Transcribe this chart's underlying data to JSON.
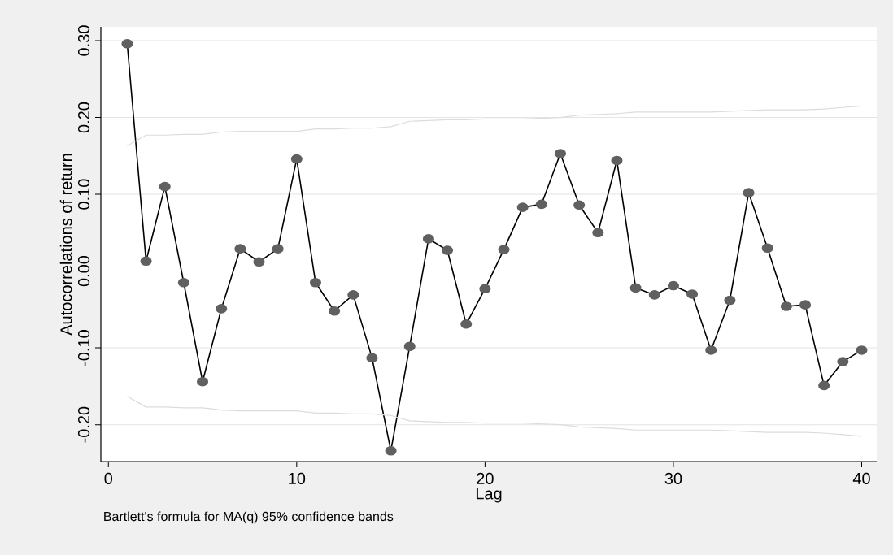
{
  "chart_data": {
    "type": "line",
    "xlabel": "Lag",
    "ylabel": "Autocorrelations of return",
    "annotations": [
      "Bartlett's formula for MA(q) 95% confidence bands"
    ],
    "x": [
      1,
      2,
      3,
      4,
      5,
      6,
      7,
      8,
      9,
      10,
      11,
      12,
      13,
      14,
      15,
      16,
      17,
      18,
      19,
      20,
      21,
      22,
      23,
      24,
      25,
      26,
      27,
      28,
      29,
      30,
      31,
      32,
      33,
      34,
      35,
      36,
      37,
      38,
      39,
      40
    ],
    "series": [
      {
        "color": "#606060",
        "values": [
          0.296,
          0.013,
          0.11,
          -0.015,
          -0.144,
          -0.049,
          0.029,
          0.012,
          0.029,
          0.146,
          -0.015,
          -0.052,
          -0.031,
          -0.113,
          -0.234,
          -0.098,
          0.042,
          0.027,
          -0.069,
          -0.023,
          0.028,
          0.083,
          0.087,
          0.153,
          0.086,
          0.05,
          0.144,
          -0.022,
          -0.031,
          -0.019,
          -0.03,
          -0.103,
          -0.038,
          0.102,
          0.03,
          -0.046,
          -0.044,
          -0.149,
          -0.118,
          -0.103
        ]
      },
      {
        "color": "#dcdcdc",
        "marker": "none",
        "values": [
          0.163,
          0.177,
          0.177,
          0.178,
          0.178,
          0.181,
          0.182,
          0.182,
          0.182,
          0.182,
          0.185,
          0.185,
          0.186,
          0.186,
          0.188,
          0.195,
          0.196,
          0.197,
          0.197,
          0.198,
          0.198,
          0.198,
          0.199,
          0.2,
          0.203,
          0.204,
          0.205,
          0.207,
          0.207,
          0.207,
          0.207,
          0.207,
          0.208,
          0.209,
          0.21,
          0.21,
          0.21,
          0.211,
          0.213,
          0.215
        ]
      },
      {
        "color": "#dcdcdc",
        "marker": "none",
        "values": [
          -0.163,
          -0.177,
          -0.177,
          -0.178,
          -0.178,
          -0.181,
          -0.182,
          -0.182,
          -0.182,
          -0.182,
          -0.185,
          -0.185,
          -0.186,
          -0.186,
          -0.188,
          -0.195,
          -0.196,
          -0.197,
          -0.197,
          -0.198,
          -0.198,
          -0.198,
          -0.199,
          -0.2,
          -0.203,
          -0.204,
          -0.205,
          -0.207,
          -0.207,
          -0.207,
          -0.207,
          -0.207,
          -0.208,
          -0.209,
          -0.21,
          -0.21,
          -0.21,
          -0.211,
          -0.213,
          -0.215
        ]
      }
    ],
    "xlim": [
      -0.4,
      40.8
    ],
    "xticks": [
      0,
      10,
      20,
      30,
      40
    ],
    "ylim": [
      -0.248,
      0.318
    ],
    "yticks": [
      {
        "value": -0.2,
        "label": "-0.20"
      },
      {
        "value": -0.1,
        "label": "-0.10"
      },
      {
        "value": 0,
        "label": "0.00"
      },
      {
        "value": 0.1,
        "label": "0.10"
      },
      {
        "value": 0.2,
        "label": "0.20"
      },
      {
        "value": 0.3,
        "label": "0.30"
      }
    ],
    "grid": "y",
    "marker": "circle",
    "line_style": "solid"
  }
}
